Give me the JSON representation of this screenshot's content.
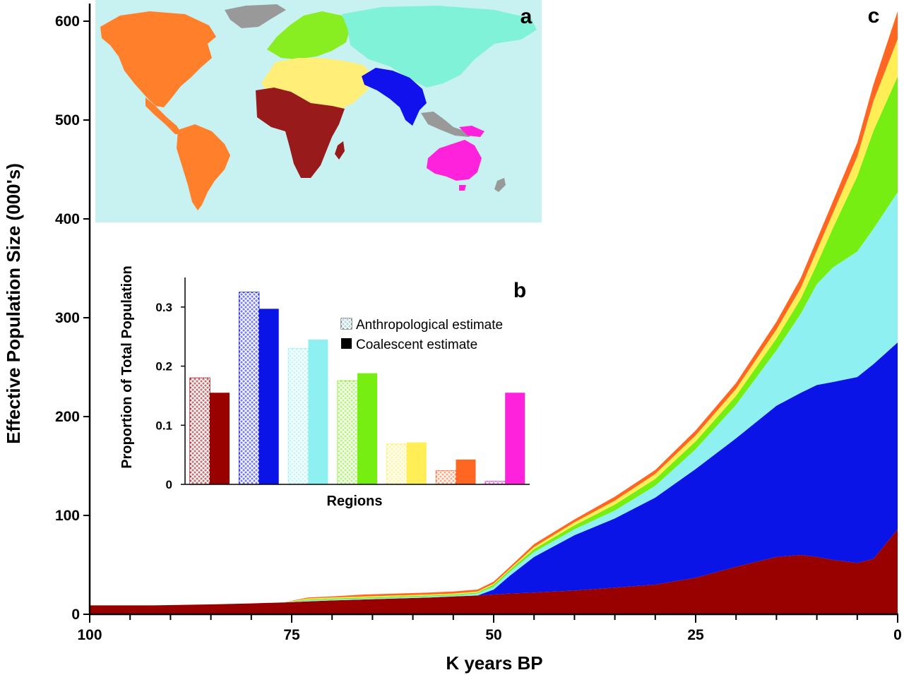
{
  "chart_data": [
    {
      "panel": "c",
      "type": "area",
      "stacked": true,
      "xlabel": "K years BP",
      "ylabel": "Effective Population Size (000's)",
      "xlim": [
        100,
        0
      ],
      "ylim": [
        0,
        620
      ],
      "x_ticks": [
        100,
        75,
        50,
        25,
        0
      ],
      "y_ticks": [
        0,
        100,
        200,
        300,
        400,
        500,
        600
      ],
      "grid": false,
      "x": [
        100,
        92,
        85,
        80,
        76,
        73,
        70,
        66,
        62,
        58,
        55,
        52,
        50,
        48,
        45,
        40,
        35,
        30,
        25,
        20,
        15,
        12,
        10,
        8,
        5,
        3,
        0
      ],
      "series": [
        {
          "color": "#990000",
          "values": [
            9,
            9,
            10,
            11,
            12,
            13,
            14,
            15,
            16,
            17,
            18,
            19,
            20,
            21,
            22,
            24,
            27,
            30,
            37,
            48,
            58,
            60,
            58,
            55,
            52,
            56,
            86
          ]
        },
        {
          "color": "#0a14e6",
          "values": [
            0,
            0,
            0,
            0,
            0,
            0,
            0,
            0,
            0,
            0,
            0,
            0,
            5,
            18,
            36,
            56,
            70,
            88,
            110,
            130,
            153,
            164,
            174,
            180,
            188,
            197,
            189
          ]
        },
        {
          "color": "#8ef0f0",
          "values": [
            0,
            0,
            0,
            0,
            0,
            1,
            1,
            1,
            1,
            1,
            1,
            2,
            3,
            4,
            5,
            6,
            8,
            12,
            20,
            34,
            56,
            80,
            102,
            116,
            127,
            137,
            152
          ]
        },
        {
          "color": "#77ee11",
          "values": [
            0,
            0,
            0,
            0,
            0,
            1,
            1,
            1,
            1,
            1,
            1,
            1,
            2,
            2,
            3,
            4,
            6,
            7,
            8,
            9,
            12,
            15,
            20,
            40,
            76,
            99,
            117
          ]
        },
        {
          "color": "#ffee55",
          "values": [
            0,
            0,
            0,
            0,
            0,
            1,
            1,
            1,
            1,
            1,
            1,
            1,
            1,
            1,
            2,
            3,
            4,
            5,
            6,
            7,
            9,
            11,
            14,
            15,
            20,
            30,
            38
          ]
        },
        {
          "color": "#ff6622",
          "values": [
            0,
            0,
            0,
            0,
            0,
            1,
            1,
            2,
            2,
            2,
            2,
            2,
            2,
            2,
            3,
            3,
            4,
            4,
            5,
            6,
            8,
            10,
            11,
            12,
            14,
            17,
            28
          ]
        }
      ]
    },
    {
      "panel": "b",
      "type": "bar",
      "xlabel": "Regions",
      "ylabel": "Proportion of Total Population",
      "ylim": [
        0,
        0.35
      ],
      "y_ticks": [
        "0",
        "0.1",
        "0.2",
        "0.3"
      ],
      "legend": {
        "placement": "top-right",
        "entries": [
          "Anthropological estimate",
          "Coalescent estimate"
        ]
      },
      "colors": [
        "#990000",
        "#0a14e6",
        "#8ef0f0",
        "#77ee11",
        "#ffee55",
        "#ff6622",
        "#ff22dd"
      ],
      "series": [
        {
          "name": "Anthropological estimate",
          "values": [
            0.18,
            0.325,
            0.23,
            0.175,
            0.068,
            0.023,
            0.005
          ]
        },
        {
          "name": "Coalescent estimate",
          "values": [
            0.155,
            0.297,
            0.245,
            0.188,
            0.071,
            0.042,
            0.155
          ]
        }
      ]
    }
  ],
  "panels": {
    "map_letter": "a",
    "bar_letter": "b",
    "area_letter": "c"
  },
  "map": {
    "ocean_color": "#c8f2f2",
    "region_colors": {
      "americas": "#ff7f2a",
      "europe": "#88ee22",
      "north_asia": "#7ff2d8",
      "north_africa_middle_east": "#ffee77",
      "sub_saharan_africa": "#991a1a",
      "south_asia": "#1111ee",
      "oceania": "#ff22dd",
      "unassigned": "#999999"
    }
  }
}
